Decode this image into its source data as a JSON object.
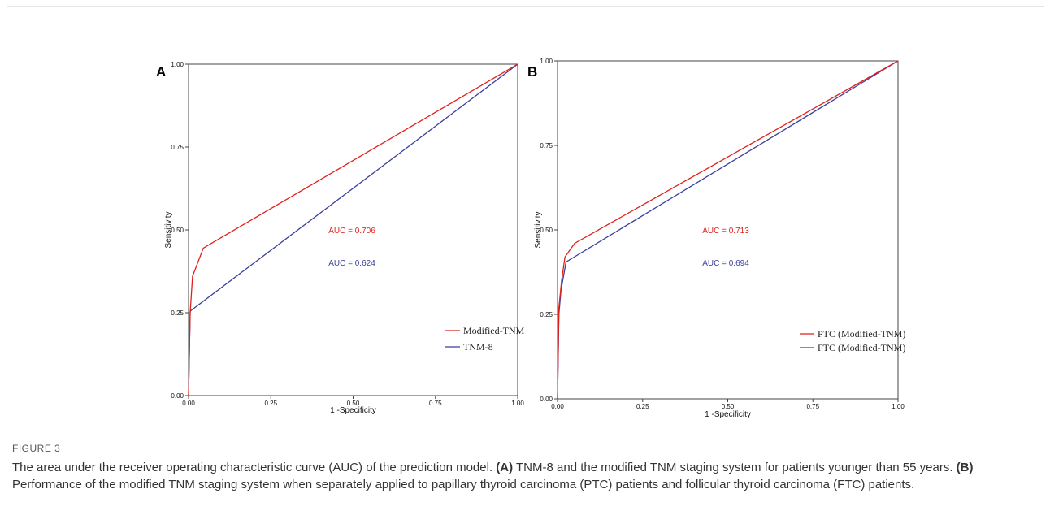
{
  "figure": {
    "label": "FIGURE 3",
    "caption_parts": [
      {
        "t": "The area under the receiver operating characteristic curve (AUC) of the prediction model. ",
        "b": false
      },
      {
        "t": "(A)",
        "b": true
      },
      {
        "t": " TNM-8 and the modified TNM staging system for patients younger than 55 years. ",
        "b": false
      },
      {
        "t": "(B)",
        "b": true
      },
      {
        "t": " Performance of the modified TNM staging system when separately applied to papillary thyroid carcinoma (PTC) patients and follicular thyroid carcinoma (FTC) patients.",
        "b": false
      }
    ]
  },
  "chart_data": [
    {
      "panel": "A",
      "type": "line",
      "xlabel": "1 -Specificity",
      "ylabel": "Sensitivity",
      "xlim": [
        0,
        1
      ],
      "ylim": [
        0,
        1
      ],
      "xticks": [
        "0.00",
        "0.25",
        "0.50",
        "0.75",
        "1.00"
      ],
      "yticks": [
        "0.00",
        "0.25",
        "0.50",
        "0.75",
        "1.00"
      ],
      "grid": false,
      "legend_position": "bottom-right",
      "series": [
        {
          "name": "Modified-TNM",
          "color": "#e0201b",
          "auc_label": "AUC = 0.706",
          "points": [
            [
              0,
              0
            ],
            [
              0.005,
              0.25
            ],
            [
              0.012,
              0.36
            ],
            [
              0.045,
              0.445
            ],
            [
              1,
              1
            ]
          ]
        },
        {
          "name": "TNM-8",
          "color": "#3a3f9c",
          "auc_label": "AUC = 0.624",
          "points": [
            [
              0,
              0
            ],
            [
              0.005,
              0.255
            ],
            [
              1,
              1
            ]
          ]
        }
      ]
    },
    {
      "panel": "B",
      "type": "line",
      "xlabel": "1 -Specificity",
      "ylabel": "Sensitivity",
      "xlim": [
        0,
        1
      ],
      "ylim": [
        0,
        1
      ],
      "xticks": [
        "0.00",
        "0.25",
        "0.50",
        "0.75",
        "1.00"
      ],
      "yticks": [
        "0.00",
        "0.25",
        "0.50",
        "0.75",
        "1.00"
      ],
      "grid": false,
      "legend_position": "bottom-right",
      "series": [
        {
          "name": "PTC (Modified-TNM)",
          "color": "#e0201b",
          "auc_label": "AUC = 0.713",
          "points": [
            [
              0,
              0
            ],
            [
              0.004,
              0.27
            ],
            [
              0.012,
              0.35
            ],
            [
              0.022,
              0.42
            ],
            [
              0.05,
              0.46
            ],
            [
              1,
              1
            ]
          ]
        },
        {
          "name": "FTC (Modified-TNM)",
          "color": "#3a3f9c",
          "auc_label": "AUC = 0.694",
          "points": [
            [
              0,
              0
            ],
            [
              0.004,
              0.25
            ],
            [
              0.01,
              0.32
            ],
            [
              0.025,
              0.405
            ],
            [
              1,
              1
            ]
          ]
        }
      ]
    }
  ]
}
